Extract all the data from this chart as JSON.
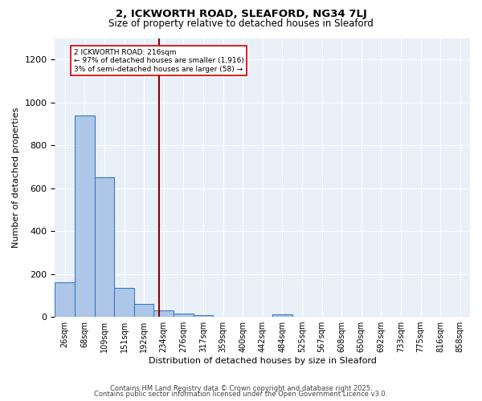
{
  "title1": "2, ICKWORTH ROAD, SLEAFORD, NG34 7LJ",
  "title2": "Size of property relative to detached houses in Sleaford",
  "xlabel": "Distribution of detached houses by size in Sleaford",
  "ylabel": "Number of detached properties",
  "bar_values": [
    160,
    940,
    650,
    135,
    60,
    30,
    15,
    8,
    0,
    0,
    0,
    10,
    0,
    0,
    0,
    0,
    0,
    0,
    0,
    0,
    0
  ],
  "bar_labels": [
    "26sqm",
    "68sqm",
    "109sqm",
    "151sqm",
    "192sqm",
    "234sqm",
    "276sqm",
    "317sqm",
    "359sqm",
    "400sqm",
    "442sqm",
    "484sqm",
    "525sqm",
    "567sqm",
    "608sqm",
    "650sqm",
    "692sqm",
    "733sqm",
    "775sqm",
    "816sqm",
    "858sqm"
  ],
  "bar_color": "#aec6e8",
  "bar_edge_color": "#3a7abf",
  "vline_x": 4.78,
  "vline_color": "#8b0000",
  "annotation_text": "2 ICKWORTH ROAD: 216sqm\n← 97% of detached houses are smaller (1,916)\n3% of semi-detached houses are larger (58) →",
  "annotation_box_color": "white",
  "annotation_box_edge": "#cc0000",
  "ylim": [
    0,
    1300
  ],
  "yticks": [
    0,
    200,
    400,
    600,
    800,
    1000,
    1200
  ],
  "background_color": "#eaf0f8",
  "grid_color": "white",
  "footer1": "Contains HM Land Registry data © Crown copyright and database right 2025.",
  "footer2": "Contains public sector information licensed under the Open Government Licence v3.0."
}
